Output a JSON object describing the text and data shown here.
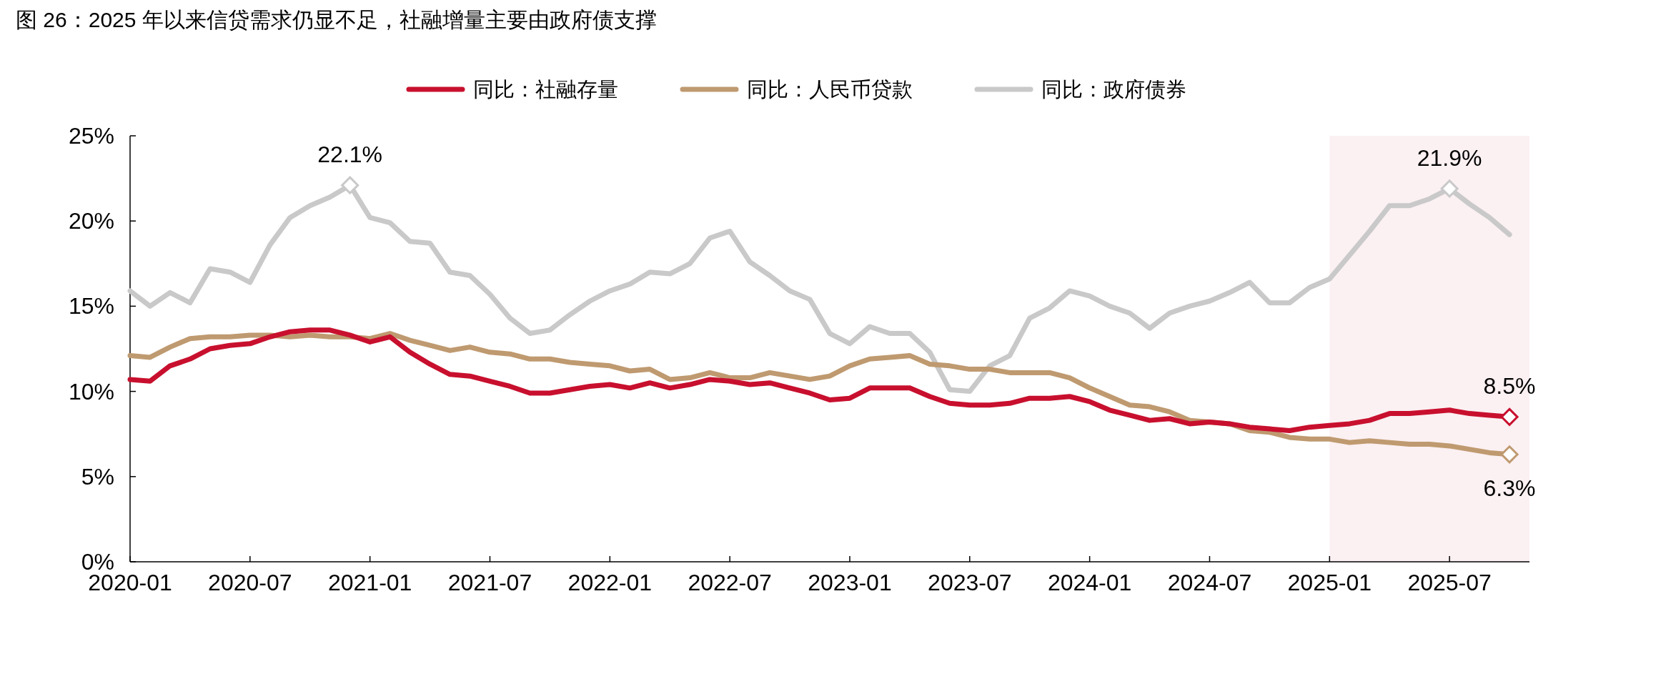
{
  "chart_data": {
    "type": "line",
    "title": "图 26：2025 年以来信贷需求仍显不足，社融增量主要由政府债支撑",
    "x": [
      "2020-01",
      "2020-02",
      "2020-03",
      "2020-04",
      "2020-05",
      "2020-06",
      "2020-07",
      "2020-08",
      "2020-09",
      "2020-10",
      "2020-11",
      "2020-12",
      "2021-01",
      "2021-02",
      "2021-03",
      "2021-04",
      "2021-05",
      "2021-06",
      "2021-07",
      "2021-08",
      "2021-09",
      "2021-10",
      "2021-11",
      "2021-12",
      "2022-01",
      "2022-02",
      "2022-03",
      "2022-04",
      "2022-05",
      "2022-06",
      "2022-07",
      "2022-08",
      "2022-09",
      "2022-10",
      "2022-11",
      "2022-12",
      "2023-01",
      "2023-02",
      "2023-03",
      "2023-04",
      "2023-05",
      "2023-06",
      "2023-07",
      "2023-08",
      "2023-09",
      "2023-10",
      "2023-11",
      "2023-12",
      "2024-01",
      "2024-02",
      "2024-03",
      "2024-04",
      "2024-05",
      "2024-06",
      "2024-07",
      "2024-08",
      "2024-09",
      "2024-10",
      "2024-11",
      "2024-12",
      "2025-01",
      "2025-02",
      "2025-03",
      "2025-04",
      "2025-05",
      "2025-06",
      "2025-07",
      "2025-08",
      "2025-09",
      "2025-10"
    ],
    "series": [
      {
        "name": "同比：社融存量",
        "color": "#c8102e",
        "values": [
          10.7,
          10.6,
          11.5,
          11.9,
          12.5,
          12.7,
          12.8,
          13.2,
          13.5,
          13.6,
          13.6,
          13.3,
          12.9,
          13.2,
          12.3,
          11.6,
          11.0,
          10.9,
          10.6,
          10.3,
          9.9,
          9.9,
          10.1,
          10.3,
          10.4,
          10.2,
          10.5,
          10.2,
          10.4,
          10.7,
          10.6,
          10.4,
          10.5,
          10.2,
          9.9,
          9.5,
          9.6,
          10.2,
          10.2,
          10.2,
          9.7,
          9.3,
          9.2,
          9.2,
          9.3,
          9.6,
          9.6,
          9.7,
          9.4,
          8.9,
          8.6,
          8.3,
          8.4,
          8.1,
          8.2,
          8.1,
          7.9,
          7.8,
          7.7,
          7.9,
          8.0,
          8.1,
          8.3,
          8.7,
          8.7,
          8.8,
          8.9,
          8.7,
          8.6,
          8.5
        ]
      },
      {
        "name": "同比：人民币贷款",
        "color": "#bf9a70",
        "values": [
          12.1,
          12.0,
          12.6,
          13.1,
          13.2,
          13.2,
          13.3,
          13.3,
          13.2,
          13.3,
          13.2,
          13.2,
          13.1,
          13.4,
          13.0,
          12.7,
          12.4,
          12.6,
          12.3,
          12.2,
          11.9,
          11.9,
          11.7,
          11.6,
          11.5,
          11.2,
          11.3,
          10.7,
          10.8,
          11.1,
          10.8,
          10.8,
          11.1,
          10.9,
          10.7,
          10.9,
          11.5,
          11.9,
          12.0,
          12.1,
          11.6,
          11.5,
          11.3,
          11.3,
          11.1,
          11.1,
          11.1,
          10.8,
          10.2,
          9.7,
          9.2,
          9.1,
          8.8,
          8.3,
          8.2,
          8.1,
          7.7,
          7.6,
          7.3,
          7.2,
          7.2,
          7.0,
          7.1,
          7.0,
          6.9,
          6.9,
          6.8,
          6.6,
          6.4,
          6.3
        ]
      },
      {
        "name": "同比：政府债券",
        "color": "#c9c9c9",
        "values": [
          15.9,
          15.0,
          15.8,
          15.2,
          17.2,
          17.0,
          16.4,
          18.6,
          20.2,
          20.9,
          21.4,
          22.1,
          20.2,
          19.9,
          18.8,
          18.7,
          17.0,
          16.8,
          15.7,
          14.3,
          13.4,
          13.6,
          14.5,
          15.3,
          15.9,
          16.3,
          17.0,
          16.9,
          17.5,
          19.0,
          19.4,
          17.6,
          16.8,
          15.9,
          15.4,
          13.4,
          12.8,
          13.8,
          13.4,
          13.4,
          12.3,
          10.1,
          10.0,
          11.5,
          12.1,
          14.3,
          14.9,
          15.9,
          15.6,
          15.0,
          14.6,
          13.7,
          14.6,
          15.0,
          15.3,
          15.8,
          16.4,
          15.2,
          15.2,
          16.1,
          16.6,
          18.0,
          19.4,
          20.9,
          20.9,
          21.3,
          21.9,
          21.0,
          20.2,
          19.2
        ]
      }
    ],
    "xlim": [
      "2020-01",
      "2025-11"
    ],
    "xticks": [
      "2020-01",
      "2020-07",
      "2021-01",
      "2021-07",
      "2022-01",
      "2022-07",
      "2023-01",
      "2023-07",
      "2024-01",
      "2024-07",
      "2025-01",
      "2025-07"
    ],
    "ylim": [
      0,
      25
    ],
    "yticks": [
      {
        "value": 0,
        "label": "0%"
      },
      {
        "value": 5,
        "label": "5%"
      },
      {
        "value": 10,
        "label": "10%"
      },
      {
        "value": 15,
        "label": "15%"
      },
      {
        "value": 20,
        "label": "20%"
      },
      {
        "value": 25,
        "label": "25%"
      }
    ],
    "bands": [
      {
        "axis": "x",
        "from": "2025-01",
        "to": "2025-11",
        "color": "#fbf0f2"
      }
    ],
    "annotations": [
      {
        "text": "22.1%",
        "x": "2020-12",
        "y": 22.1
      },
      {
        "text": "21.9%",
        "x": "2025-07",
        "y": 21.9
      },
      {
        "text": "8.5%",
        "x": "2025-10",
        "y": 8.5
      },
      {
        "text": "6.3%",
        "x": "2025-10",
        "y": 6.3
      }
    ],
    "line_style": "solid",
    "grid": false,
    "legend": "top"
  }
}
